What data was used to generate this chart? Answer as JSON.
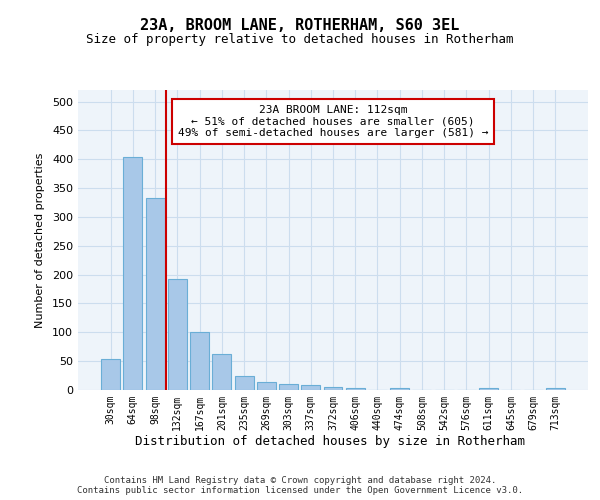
{
  "title": "23A, BROOM LANE, ROTHERHAM, S60 3EL",
  "subtitle": "Size of property relative to detached houses in Rotherham",
  "xlabel": "Distribution of detached houses by size in Rotherham",
  "ylabel": "Number of detached properties",
  "footer_line1": "Contains HM Land Registry data © Crown copyright and database right 2024.",
  "footer_line2": "Contains public sector information licensed under the Open Government Licence v3.0.",
  "bar_labels": [
    "30sqm",
    "64sqm",
    "98sqm",
    "132sqm",
    "167sqm",
    "201sqm",
    "235sqm",
    "269sqm",
    "303sqm",
    "337sqm",
    "372sqm",
    "406sqm",
    "440sqm",
    "474sqm",
    "508sqm",
    "542sqm",
    "576sqm",
    "611sqm",
    "645sqm",
    "679sqm",
    "713sqm"
  ],
  "bar_values": [
    53,
    403,
    333,
    192,
    100,
    63,
    25,
    14,
    11,
    9,
    5,
    4,
    0,
    4,
    0,
    0,
    0,
    4,
    0,
    0,
    4
  ],
  "bar_color": "#a8c8e8",
  "bar_edge_color": "#6aaed6",
  "grid_color": "#ccddee",
  "bg_color": "#eef4fa",
  "vline_x_index": 2.5,
  "vline_color": "#cc0000",
  "annotation_text": "23A BROOM LANE: 112sqm\n← 51% of detached houses are smaller (605)\n49% of semi-detached houses are larger (581) →",
  "annotation_box_color": "#cc0000",
  "ylim": [
    0,
    520
  ],
  "yticks": [
    0,
    50,
    100,
    150,
    200,
    250,
    300,
    350,
    400,
    450,
    500
  ]
}
